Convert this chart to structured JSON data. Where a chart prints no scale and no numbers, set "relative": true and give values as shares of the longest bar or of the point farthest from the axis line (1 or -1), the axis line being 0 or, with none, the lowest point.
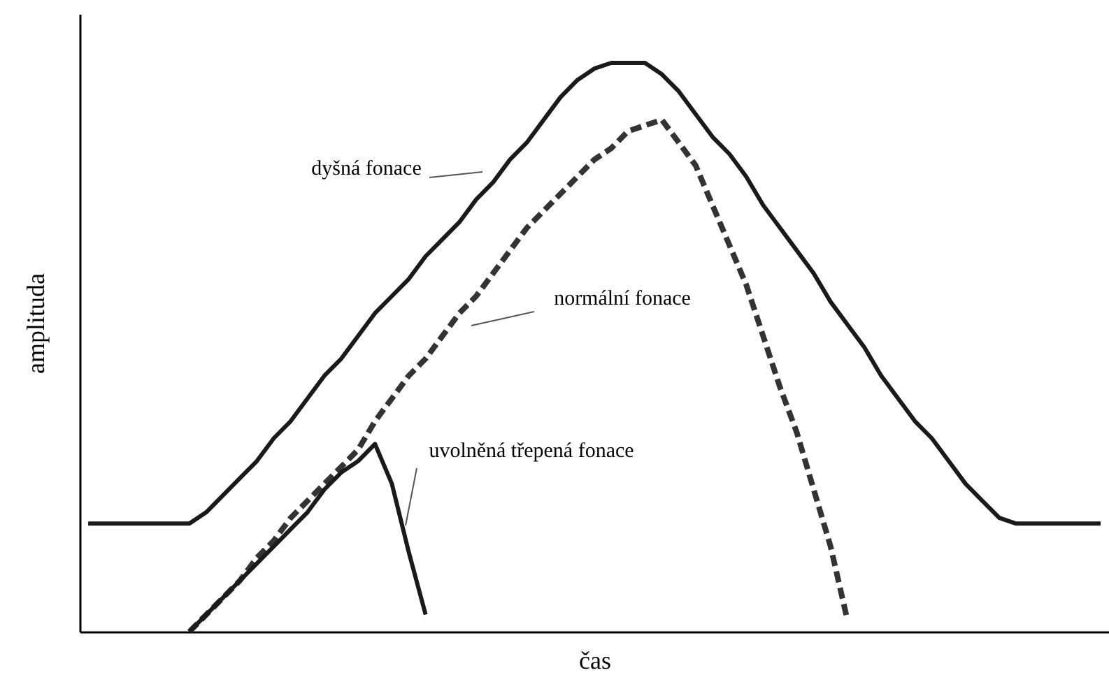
{
  "chart_data": {
    "type": "line",
    "relative": true,
    "xlabel": "čas",
    "ylabel": "amplituda",
    "grid": false,
    "marker": "none",
    "tick_labels": false,
    "categories": [
      null,
      null,
      null,
      null,
      null,
      null,
      null,
      null,
      null,
      null,
      null,
      null,
      null,
      null,
      null,
      null,
      null,
      null,
      null,
      null,
      null,
      null,
      null,
      null,
      null,
      null,
      null,
      null,
      null,
      null,
      null,
      null,
      null,
      null,
      null,
      null,
      null,
      null,
      null,
      null,
      null,
      null,
      null,
      null,
      null,
      null,
      null,
      null,
      null,
      null,
      null,
      null,
      null,
      null,
      null,
      null,
      null,
      null,
      null,
      null,
      null
    ],
    "series": [
      {
        "color": "#1a1a1a",
        "line_style": "solid",
        "values": [
          0.19,
          0.19,
          0.19,
          0.19,
          0.19,
          0.19,
          0.19,
          0.21,
          0.24,
          0.27,
          0.3,
          0.34,
          0.37,
          0.41,
          0.45,
          0.48,
          0.52,
          0.56,
          0.59,
          0.62,
          0.66,
          0.69,
          0.72,
          0.76,
          0.79,
          0.83,
          0.86,
          0.9,
          0.94,
          0.97,
          0.99,
          1.0,
          1.0,
          1.0,
          0.98,
          0.95,
          0.91,
          0.87,
          0.84,
          0.8,
          0.75,
          0.71,
          0.67,
          0.63,
          0.58,
          0.54,
          0.5,
          0.45,
          0.41,
          0.37,
          0.34,
          0.3,
          0.26,
          0.23,
          0.2,
          0.19,
          0.19,
          0.19,
          0.19,
          0.19,
          0.19
        ]
      },
      {
        "color": "#333333",
        "line_style": "dashed",
        "values": [
          null,
          null,
          null,
          null,
          null,
          null,
          0.0,
          0.03,
          0.06,
          0.09,
          0.13,
          0.16,
          0.2,
          0.23,
          0.26,
          0.29,
          0.32,
          0.37,
          0.41,
          0.45,
          0.48,
          0.52,
          0.56,
          0.59,
          0.63,
          0.67,
          0.71,
          0.74,
          0.77,
          0.8,
          0.83,
          0.85,
          0.88,
          0.89,
          0.9,
          0.86,
          0.82,
          0.75,
          0.68,
          0.61,
          0.52,
          0.43,
          0.35,
          0.25,
          0.15,
          0.02,
          null,
          null,
          null,
          null,
          null,
          null,
          null,
          null,
          null,
          null,
          null,
          null,
          null,
          null,
          null
        ]
      },
      {
        "color": "#1a1a1a",
        "line_style": "solid",
        "values": [
          null,
          null,
          null,
          null,
          null,
          null,
          0.0,
          0.03,
          0.06,
          0.09,
          0.12,
          0.15,
          0.18,
          0.21,
          0.25,
          0.28,
          0.3,
          0.33,
          0.26,
          0.14,
          0.03,
          null,
          null,
          null,
          null,
          null,
          null,
          null,
          null,
          null,
          null,
          null,
          null,
          null,
          null,
          null,
          null,
          null,
          null,
          null,
          null,
          null,
          null,
          null,
          null,
          null,
          null,
          null,
          null,
          null,
          null,
          null,
          null,
          null,
          null,
          null,
          null,
          null,
          null,
          null,
          null
        ]
      }
    ],
    "annotations": [
      "dyšná fonace",
      "normální fonace",
      "uvolněná třepená fonace"
    ]
  }
}
